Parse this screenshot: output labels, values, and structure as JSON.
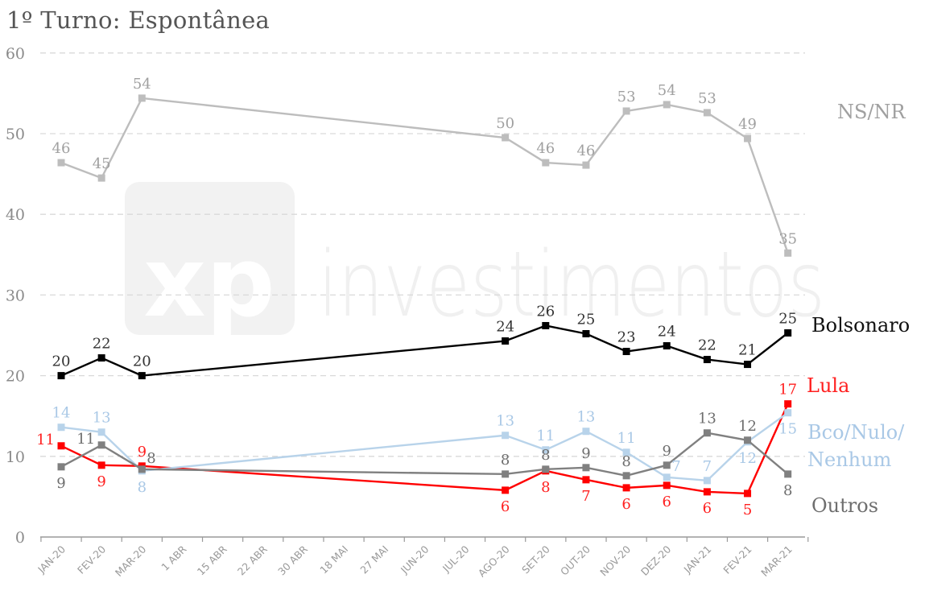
{
  "chart_data": {
    "type": "line",
    "title": "1º Turno: Espontânea",
    "watermark": "investimentos",
    "watermark_logo_text": "xp",
    "ylim": [
      0,
      60
    ],
    "y_ticks": [
      0,
      10,
      20,
      30,
      40,
      50,
      60
    ],
    "grid": true,
    "categories": [
      "JAN-20",
      "FEV-20",
      "MAR-20",
      "1 ABR",
      "15 ABR",
      "22 ABR",
      "30 ABR",
      "18 MAI",
      "27 MAI",
      "JUN-20",
      "JUL-20",
      "AGO-20",
      "SET-20",
      "OUT-20",
      "NOV-20",
      "DEZ-20",
      "JAN-21",
      "FEV-21",
      "MAR-21"
    ],
    "series": [
      {
        "name": "NS/NR",
        "color": "#bdbdbd",
        "label_color": "#a0a0a0",
        "values": [
          46.4,
          44.5,
          54.4,
          null,
          null,
          null,
          null,
          null,
          null,
          null,
          null,
          49.5,
          46.4,
          46.1,
          52.8,
          53.6,
          52.6,
          49.4,
          35.2
        ],
        "labels": [
          "46",
          "45",
          "54",
          null,
          null,
          null,
          null,
          null,
          null,
          null,
          null,
          "50",
          "46",
          "46",
          "53",
          "54",
          "53",
          "49",
          "35"
        ]
      },
      {
        "name": "Bolsonaro",
        "color": "#000000",
        "label_color": "#333333",
        "values": [
          20.0,
          22.2,
          20.0,
          null,
          null,
          null,
          null,
          null,
          null,
          null,
          null,
          24.3,
          26.2,
          25.2,
          23.0,
          23.7,
          22.0,
          21.4,
          25.3
        ],
        "labels": [
          "20",
          "22",
          "20",
          null,
          null,
          null,
          null,
          null,
          null,
          null,
          null,
          "24",
          "26",
          "25",
          "23",
          "24",
          "22",
          "21",
          "25"
        ]
      },
      {
        "name": "Lula",
        "color": "#ff0000",
        "label_color": "#ff2020",
        "values": [
          11.3,
          8.9,
          8.8,
          null,
          null,
          null,
          null,
          null,
          null,
          null,
          null,
          5.8,
          8.2,
          7.1,
          6.1,
          6.4,
          5.6,
          5.4,
          16.5
        ],
        "labels": [
          "11",
          "9",
          "9",
          null,
          null,
          null,
          null,
          null,
          null,
          null,
          null,
          "6",
          "8",
          "7",
          "6",
          "6",
          "6",
          "5",
          "17"
        ]
      },
      {
        "name": "Bco/Nulo/ Nenhum",
        "color": "#b8d3ea",
        "label_color": "#a9c8e6",
        "values": [
          13.6,
          13.0,
          8.2,
          null,
          null,
          null,
          null,
          null,
          null,
          null,
          null,
          12.6,
          10.8,
          13.1,
          10.5,
          7.4,
          7.0,
          11.8,
          15.4
        ],
        "labels": [
          "14",
          "13",
          "8",
          null,
          null,
          null,
          null,
          null,
          null,
          null,
          null,
          "13",
          "11",
          "13",
          "11",
          "7",
          "7",
          "12",
          "15"
        ]
      },
      {
        "name": "Outros",
        "color": "#808080",
        "label_color": "#6e6e6e",
        "values": [
          8.7,
          11.4,
          8.4,
          null,
          null,
          null,
          null,
          null,
          null,
          null,
          null,
          7.8,
          8.4,
          8.6,
          7.6,
          8.9,
          12.9,
          12.0,
          7.8
        ],
        "labels": [
          "9",
          "11",
          "8",
          null,
          null,
          null,
          null,
          null,
          null,
          null,
          null,
          "8",
          "8",
          "9",
          "8",
          "9",
          "13",
          "12",
          "8"
        ]
      }
    ]
  }
}
